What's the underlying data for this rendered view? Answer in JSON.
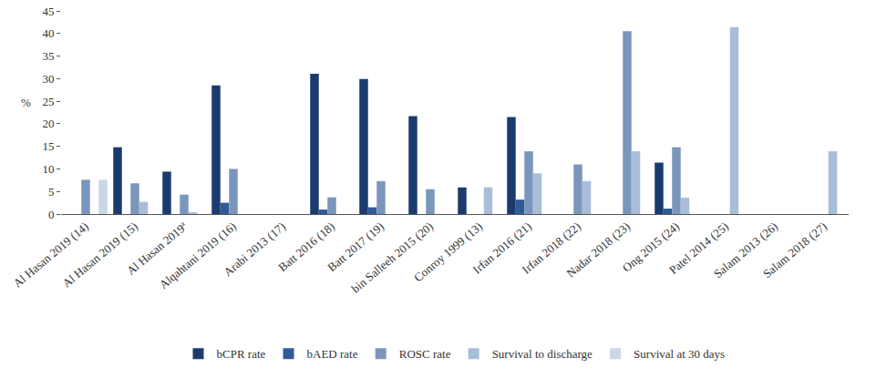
{
  "chart_data": {
    "type": "bar",
    "y_label": "%",
    "categories": [
      "Al Hasan 2019 (14)",
      "Al Hasan 2019 (15)",
      "Al Hasan 2019ª",
      "Alqahtani 2019 (16)",
      "Arabi 2013 (17)",
      "Batt 2016 (18)",
      "Batt 2017 (19)",
      "bin Salleeh 2015 (20)",
      "Conroy 1999 (13)",
      "Irfan 2016 (21)",
      "Irfan 2018 (22)",
      "Nadar 2018 (23)",
      "Ong 2015 (24)",
      "Patel 2014 (25)",
      "Salam 2013 (26)",
      "Salam 2018 (27)"
    ],
    "series": [
      {
        "name": "bCPR rate",
        "color": "#1b3b6f",
        "values": [
          null,
          14.8,
          9.4,
          28.5,
          null,
          31.1,
          29.9,
          21.7,
          5.9,
          21.5,
          null,
          null,
          11.4,
          null,
          null,
          null
        ]
      },
      {
        "name": "bAED rate",
        "color": "#2f5b98",
        "values": [
          null,
          null,
          null,
          2.5,
          null,
          1.0,
          1.5,
          null,
          null,
          3.2,
          null,
          null,
          1.2,
          null,
          null,
          null
        ]
      },
      {
        "name": "ROSC rate",
        "color": "#7b96bc",
        "values": [
          7.6,
          6.8,
          4.3,
          10.0,
          null,
          3.7,
          7.3,
          5.5,
          null,
          13.9,
          11.0,
          40.5,
          14.8,
          null,
          null,
          null
        ]
      },
      {
        "name": "Survival to discharge",
        "color": "#a8bdd8",
        "values": [
          null,
          2.7,
          0.3,
          null,
          null,
          null,
          null,
          null,
          5.9,
          9.0,
          7.3,
          13.9,
          3.6,
          41.4,
          null,
          13.9
        ]
      },
      {
        "name": "Survival at 30 days",
        "color": "#c9d7e7",
        "values": [
          7.6,
          null,
          null,
          null,
          null,
          null,
          null,
          null,
          null,
          null,
          null,
          null,
          null,
          null,
          null,
          null
        ]
      }
    ],
    "ylim": [
      0,
      45
    ],
    "yticks": [
      0,
      5,
      10,
      15,
      20,
      25,
      30,
      35,
      40,
      45
    ],
    "grid": false,
    "legend": "bottom"
  }
}
